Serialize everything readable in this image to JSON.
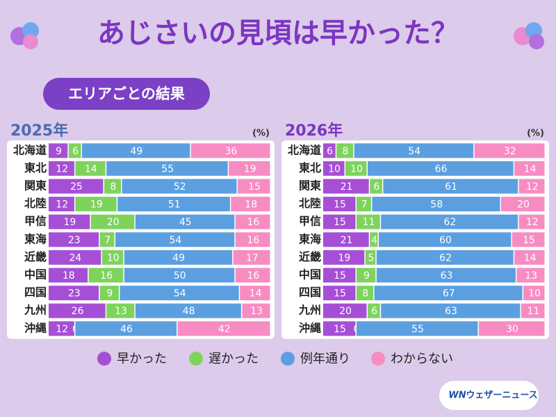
{
  "title": "あじさいの見頃は早かった？",
  "subtitle": "エリアごとの結果",
  "brand": "ウェザーニュース",
  "brand_mark": "WN",
  "chart_data": [
    {
      "type": "stacked-bar",
      "title": "2025年",
      "unit": "(%)",
      "title_color": "#4a6bb3",
      "categories": [
        "北海道",
        "東北",
        "関東",
        "北陸",
        "甲信",
        "東海",
        "近畿",
        "中国",
        "四国",
        "九州",
        "沖縄"
      ],
      "series": [
        {
          "name": "早かった",
          "color": "#a64fd6",
          "values": [
            9,
            12,
            25,
            12,
            19,
            23,
            24,
            18,
            23,
            26,
            12
          ]
        },
        {
          "name": "遅かった",
          "color": "#7ed35d",
          "values": [
            6,
            14,
            8,
            19,
            20,
            7,
            10,
            16,
            9,
            13,
            0
          ]
        },
        {
          "name": "例年通り",
          "color": "#5b9fe0",
          "values": [
            49,
            55,
            52,
            51,
            45,
            54,
            49,
            50,
            54,
            48,
            46
          ]
        },
        {
          "name": "わからない",
          "color": "#f78cc2",
          "values": [
            36,
            19,
            15,
            18,
            16,
            16,
            17,
            16,
            14,
            13,
            42
          ]
        }
      ]
    },
    {
      "type": "stacked-bar",
      "title": "2026年",
      "unit": "(%)",
      "title_color": "#7b35c2",
      "categories": [
        "北海道",
        "東北",
        "関東",
        "北陸",
        "甲信",
        "東海",
        "近畿",
        "中国",
        "四国",
        "九州",
        "沖縄"
      ],
      "series": [
        {
          "color": "#a64fd6",
          "values": [
            6,
            10,
            21,
            15,
            15,
            21,
            19,
            15,
            15,
            20,
            15
          ]
        },
        {
          "color": "#7ed35d",
          "values": [
            8,
            10,
            6,
            7,
            11,
            4,
            5,
            9,
            8,
            6,
            0
          ]
        },
        {
          "color": "#5b9fe0",
          "values": [
            54,
            66,
            61,
            58,
            62,
            60,
            62,
            63,
            67,
            63,
            55
          ]
        },
        {
          "color": "#f78cc2",
          "values": [
            32,
            14,
            12,
            20,
            12,
            15,
            14,
            13,
            10,
            11,
            30
          ]
        }
      ]
    }
  ]
}
